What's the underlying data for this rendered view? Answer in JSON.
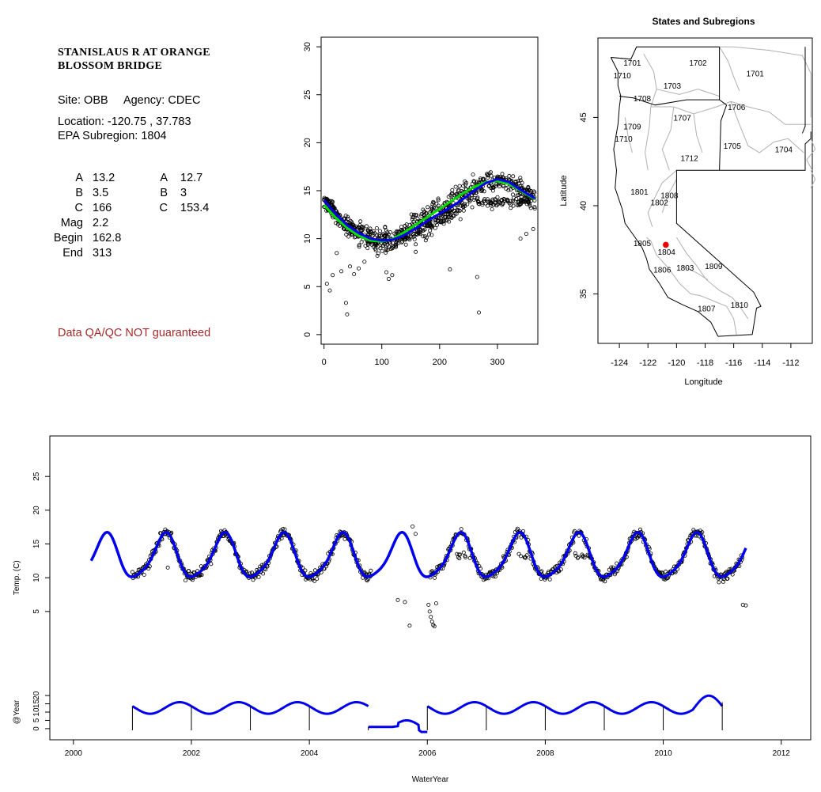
{
  "site": {
    "name_line1": "STANISLAUS R AT ORANGE",
    "name_line2": "BLOSSOM BRIDGE",
    "site_label": "Site:",
    "site_code": "OBB",
    "agency_label": "Agency:",
    "agency": "CDEC",
    "location_label": "Location:",
    "location": "-120.75 , 37.783",
    "subregion_label": "EPA Subregion:",
    "subregion": "1804",
    "qa_note": "Data QA/QC NOT guaranteed"
  },
  "params": {
    "left": [
      {
        "label": "A",
        "value": "13.2"
      },
      {
        "label": "B",
        "value": "3.5"
      },
      {
        "label": "C",
        "value": "166"
      },
      {
        "label": "Mag",
        "value": "2.2"
      },
      {
        "label": "Begin",
        "value": "162.8"
      },
      {
        "label": "End",
        "value": "313"
      }
    ],
    "right": [
      {
        "label": "A",
        "value": "12.7"
      },
      {
        "label": "B",
        "value": "3"
      },
      {
        "label": "C",
        "value": "153.4"
      }
    ]
  },
  "colors": {
    "fit_blue": "#0000ee",
    "fit_green": "#00dd00",
    "site_red": "#ee0000",
    "boundary_gray": "#b0b0b0",
    "qa_text": "#a52a2a"
  },
  "chart_data": [
    {
      "id": "day-of-year",
      "type": "scatter",
      "title": "",
      "xlabel": "",
      "ylabel": "",
      "xlim": [
        -5,
        370
      ],
      "ylim": [
        -1,
        31
      ],
      "xticks": [
        0,
        100,
        200,
        300
      ],
      "yticks": [
        0,
        5,
        10,
        15,
        20,
        25,
        30
      ],
      "points_note_seed": 11,
      "series": [
        {
          "name": "",
          "kind": "line",
          "color": "blue",
          "x": [
            0,
            20,
            40,
            60,
            80,
            100,
            120,
            140,
            160,
            180,
            200,
            220,
            240,
            260,
            280,
            300,
            320,
            340,
            365
          ],
          "y": [
            14.0,
            12.6,
            11.4,
            10.6,
            10.0,
            9.8,
            9.9,
            10.4,
            11.1,
            11.9,
            12.6,
            13.3,
            14.1,
            15.0,
            15.8,
            16.2,
            15.9,
            15.1,
            14.2
          ]
        },
        {
          "name": "",
          "kind": "line",
          "color": "green",
          "x": [
            0,
            20,
            40,
            60,
            80,
            100,
            120,
            140,
            160,
            180,
            200,
            220,
            240,
            260,
            280,
            300,
            320,
            340,
            365
          ],
          "y": [
            13.5,
            12.2,
            11.1,
            10.3,
            9.8,
            9.7,
            10.0,
            10.7,
            11.5,
            12.3,
            13.1,
            13.9,
            14.7,
            15.4,
            15.9,
            16.0,
            15.7,
            15.0,
            14.1
          ]
        },
        {
          "name": "",
          "kind": "outliers",
          "x": [
            5,
            10,
            15,
            22,
            30,
            38,
            40,
            45,
            52,
            60,
            70,
            108,
            112,
            118,
            218,
            265,
            268,
            340,
            350,
            362
          ],
          "y": [
            5.3,
            4.6,
            6.2,
            8.5,
            6.6,
            3.3,
            2.1,
            7.1,
            6.3,
            6.9,
            7.6,
            6.5,
            5.8,
            6.2,
            6.8,
            6.0,
            2.3,
            10.0,
            10.5,
            11.0
          ]
        }
      ]
    },
    {
      "id": "region-map",
      "type": "map",
      "title": "States and Subregions",
      "xlabel": "Longitude",
      "ylabel": "Latitude",
      "xlim": [
        -125.5,
        -110.5
      ],
      "ylim": [
        32.2,
        49.5
      ],
      "xticks": [
        -124,
        -122,
        -120,
        -118,
        -116,
        -114,
        -112
      ],
      "yticks": [
        35,
        40,
        45
      ],
      "site_point": {
        "lon": -120.75,
        "lat": 37.783
      },
      "region_labels": [
        {
          "label": "1701",
          "lon": -123.1,
          "lat": 48.1
        },
        {
          "label": "1702",
          "lon": -118.5,
          "lat": 48.1
        },
        {
          "label": "1701",
          "lon": -114.5,
          "lat": 47.5
        },
        {
          "label": "1710",
          "lon": -123.8,
          "lat": 47.4
        },
        {
          "label": "1703",
          "lon": -120.3,
          "lat": 46.8
        },
        {
          "label": "1708",
          "lon": -122.4,
          "lat": 46.1
        },
        {
          "label": "1706",
          "lon": -115.8,
          "lat": 45.6
        },
        {
          "label": "1707",
          "lon": -119.6,
          "lat": 45.0
        },
        {
          "label": "1709",
          "lon": -123.1,
          "lat": 44.5
        },
        {
          "label": "1710",
          "lon": -123.7,
          "lat": 43.8
        },
        {
          "label": "1705",
          "lon": -116.1,
          "lat": 43.4
        },
        {
          "label": "1704",
          "lon": -112.5,
          "lat": 43.2
        },
        {
          "label": "1712",
          "lon": -119.1,
          "lat": 42.7
        },
        {
          "label": "1801",
          "lon": -122.6,
          "lat": 40.8
        },
        {
          "label": "1808",
          "lon": -120.5,
          "lat": 40.6
        },
        {
          "label": "1802",
          "lon": -121.2,
          "lat": 40.2
        },
        {
          "label": "1805",
          "lon": -122.4,
          "lat": 37.9
        },
        {
          "label": "1804",
          "lon": -120.7,
          "lat": 37.4
        },
        {
          "label": "1806",
          "lon": -121.0,
          "lat": 36.4
        },
        {
          "label": "1803",
          "lon": -119.4,
          "lat": 36.5
        },
        {
          "label": "1809",
          "lon": -117.4,
          "lat": 36.6
        },
        {
          "label": "1807",
          "lon": -117.9,
          "lat": 34.2
        },
        {
          "label": "1810",
          "lon": -115.6,
          "lat": 34.4
        }
      ]
    },
    {
      "id": "time-series",
      "type": "scatter",
      "title": "",
      "xlabel": "WaterYear",
      "ylabel": "Temp. (C)",
      "ylabel2": "@Year",
      "xlim": [
        1999.6,
        2012.5
      ],
      "ylim": [
        -14,
        31
      ],
      "xticks": [
        2000,
        2002,
        2004,
        2006,
        2008,
        2010,
        2012
      ],
      "yticks": [
        5,
        10,
        15,
        20,
        25
      ],
      "yticks2": [
        0,
        5,
        10,
        15,
        20
      ],
      "sub_axis_range": [
        -1,
        21
      ],
      "fit_range": [
        2000.3,
        2011.4
      ],
      "fit_params": {
        "mean": 13.0,
        "amplitude": 3.2,
        "peak_phase": 0.55
      },
      "data_gap": [
        2005.0,
        2006.0
      ],
      "annual_markers": [
        2001,
        2002,
        2003,
        2004,
        2005,
        2006,
        2007,
        2008,
        2009,
        2010,
        2011
      ],
      "outliers": {
        "x": [
          2005.5,
          2005.62,
          2005.7,
          2005.75,
          2005.8,
          2006.02,
          2006.04,
          2006.06,
          2006.08,
          2006.1,
          2006.12,
          2006.15,
          2001.9,
          2001.95,
          2001.6,
          2011.35,
          2011.4
        ],
        "y": [
          6.7,
          6.4,
          2.9,
          17.6,
          16.5,
          6.0,
          5.0,
          4.2,
          3.5,
          3.0,
          2.8,
          6.2,
          9.6,
          11.0,
          11.5,
          6.0,
          5.9
        ]
      }
    }
  ]
}
